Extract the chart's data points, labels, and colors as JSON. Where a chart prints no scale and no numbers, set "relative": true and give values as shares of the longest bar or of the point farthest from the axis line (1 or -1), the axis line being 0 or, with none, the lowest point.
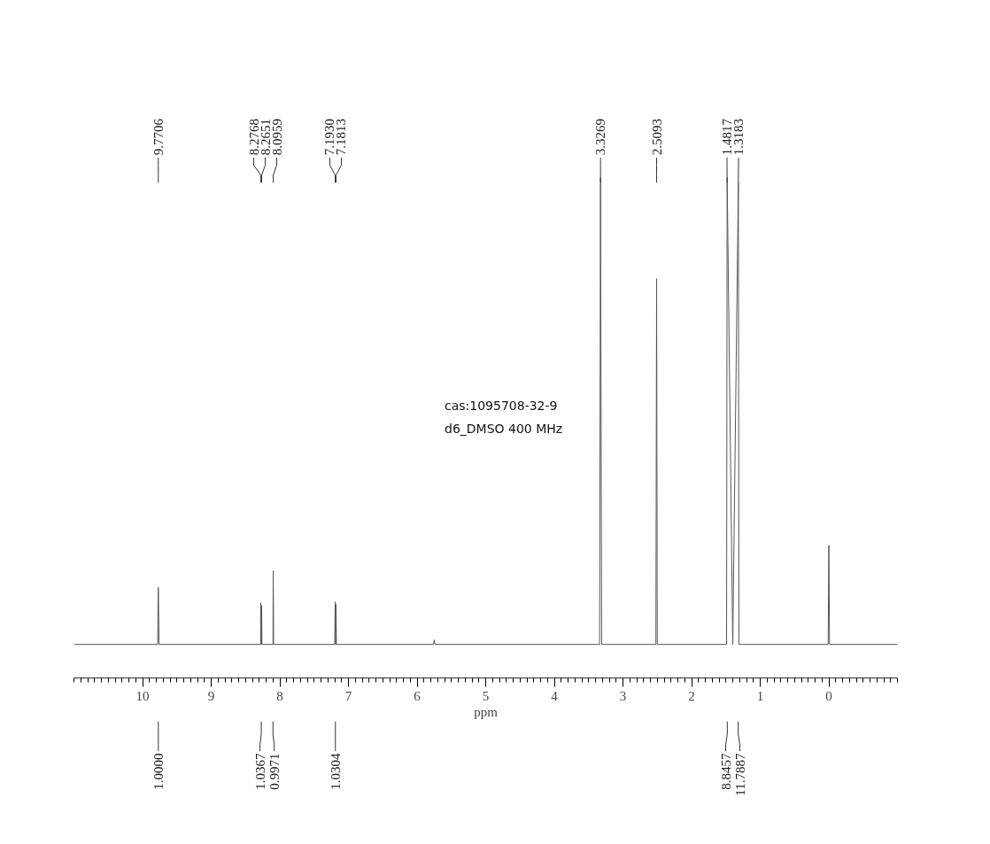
{
  "chart_data": {
    "type": "line",
    "relative": true,
    "color": "#555555",
    "xlabel": "ppm",
    "xlim": [
      11,
      -1
    ],
    "xticks": [
      10,
      9,
      8,
      7,
      6,
      5,
      4,
      3,
      2,
      1,
      0
    ],
    "grid": false,
    "x": [
      11,
      9.78,
      9.7706,
      9.76,
      8.28,
      8.2768,
      8.271,
      8.2651,
      8.26,
      8.1,
      8.0959,
      8.09,
      7.2,
      7.193,
      7.187,
      7.1813,
      7.175,
      5.76,
      5.75,
      5.74,
      3.34,
      3.3269,
      3.31,
      2.52,
      2.5093,
      2.5,
      1.49,
      1.4817,
      1.4,
      1.3183,
      1.31,
      0.01,
      0,
      -0.01,
      -1
    ],
    "values": [
      0.067,
      0.067,
      0.181,
      0.067,
      0.067,
      0.15,
      0.067,
      0.145,
      0.067,
      0.067,
      0.214,
      0.067,
      0.067,
      0.152,
      0.067,
      0.147,
      0.067,
      0.067,
      0.076,
      0.067,
      0.067,
      1,
      0.067,
      0.067,
      0.798,
      0.067,
      0.067,
      1,
      0.067,
      0.99,
      0.067,
      0.067,
      0.265,
      0.067,
      0.067
    ],
    "annotations": [
      {
        "text": "9.7706",
        "x": 9.7706
      },
      {
        "text": "8.2768",
        "x": 8.2768
      },
      {
        "text": "8.2651",
        "x": 8.2651
      },
      {
        "text": "8.0959",
        "x": 8.0959
      },
      {
        "text": "7.1930",
        "x": 7.193
      },
      {
        "text": "7.1813",
        "x": 7.1813
      },
      {
        "text": "3.3269",
        "x": 3.3269
      },
      {
        "text": "2.5093",
        "x": 2.5093
      },
      {
        "text": "1.4817",
        "x": 1.4817
      },
      {
        "text": "1.3183",
        "x": 1.3183
      },
      {
        "text": "1.0000",
        "x": 9.77
      },
      {
        "text": "1.0367",
        "x": 8.27
      },
      {
        "text": "0.9971",
        "x": 8.1
      },
      {
        "text": "1.0304",
        "x": 7.19
      },
      {
        "text": "8.8457",
        "x": 1.48
      },
      {
        "text": "11.7887",
        "x": 1.32
      },
      "cas:1095708-32-9",
      "d6_DMSO  400 MHz"
    ]
  }
}
